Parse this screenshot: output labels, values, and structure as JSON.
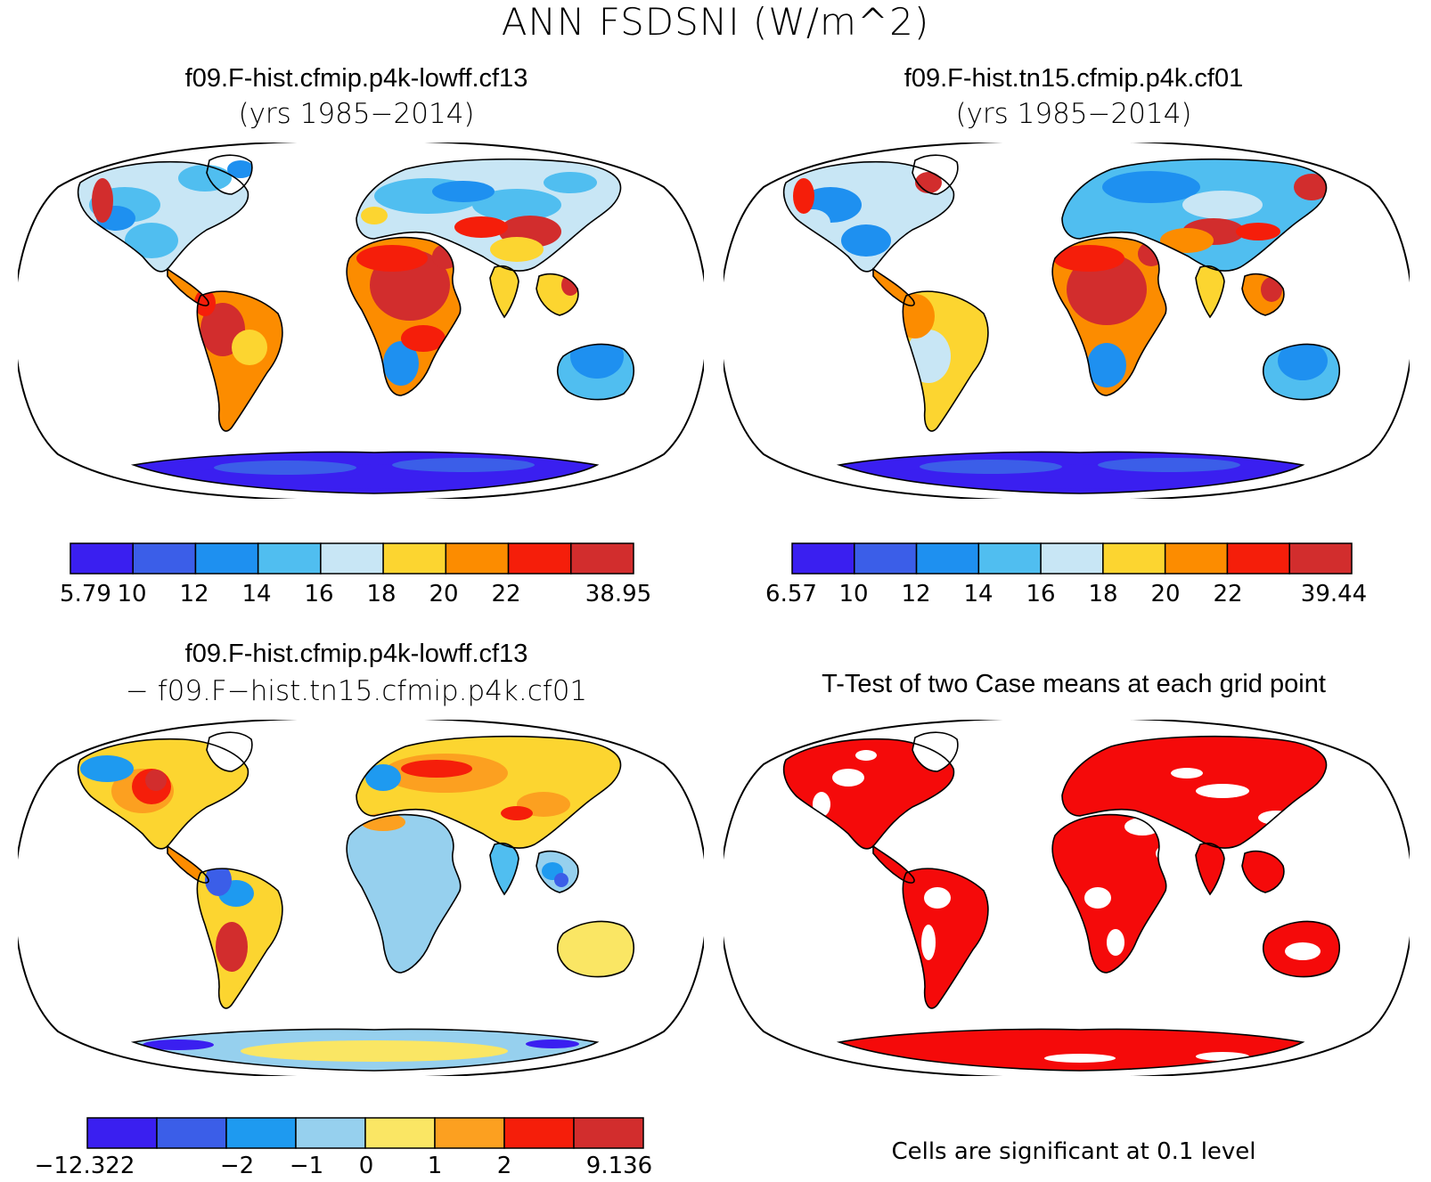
{
  "figure": {
    "title": "ANN FSDSNI (W/m^2)"
  },
  "colors": {
    "scale9": [
      "#3a1ff0",
      "#3b5ee8",
      "#1e90f0",
      "#50bef0",
      "#c8e6f5",
      "#fcd530",
      "#fc8c00",
      "#f51e0a",
      "#d22d2d"
    ],
    "diff8": [
      "#3a1ff0",
      "#3b5ee8",
      "#1e9af0",
      "#96d0ee",
      "#fae664",
      "#fca020",
      "#f51e0a",
      "#d22d2d"
    ],
    "signif": "#f50a0a",
    "coast": "#000000"
  },
  "panels": [
    {
      "title": "f09.F-hist.cfmip.p4k-lowff.cf13",
      "subtitle": "(yrs 1985−2014)",
      "colorbar_labels": [
        "5.79",
        "10",
        "12",
        "14",
        "16",
        "18",
        "20",
        "22",
        "38.95"
      ]
    },
    {
      "title": "f09.F-hist.tn15.cfmip.p4k.cf01",
      "subtitle": "(yrs 1985−2014)",
      "colorbar_labels": [
        "6.57",
        "10",
        "12",
        "14",
        "16",
        "18",
        "20",
        "22",
        "39.44"
      ]
    },
    {
      "title": "f09.F-hist.cfmip.p4k-lowff.cf13",
      "subtitle": "− f09.F−hist.tn15.cfmip.p4k.cf01",
      "colorbar_labels": [
        "−12.322",
        "−2",
        "−1",
        "0",
        "1",
        "2",
        "9.136"
      ]
    },
    {
      "title": "T-Test of two Case means at each grid point",
      "note": "Cells are significant at 0.1 level"
    }
  ]
}
